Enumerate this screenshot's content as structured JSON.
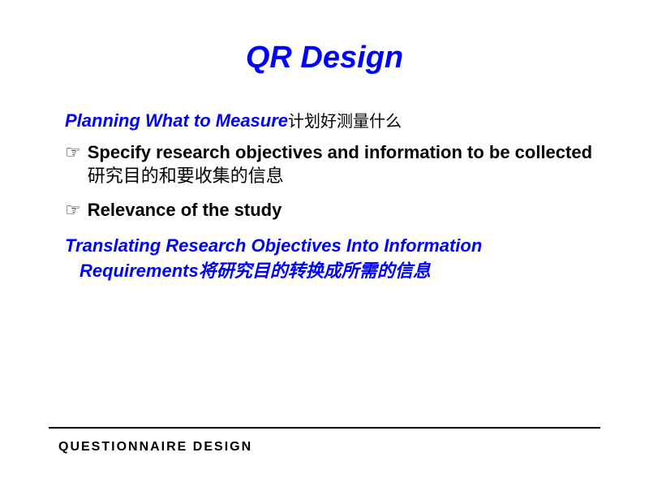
{
  "slide": {
    "title": "QR Design",
    "heading1_en": "Planning What to Measure",
    "heading1_zh": "计划好测量什么",
    "bullet1_en": "Specify research objectives and information to be collected",
    "bullet1_zh": " 研究目的和要收集的信息",
    "bullet2": "Relevance of the study",
    "heading2_line1": "Translating Research Objectives Into Information",
    "heading2_line2_en": "Requirements",
    "heading2_line2_zh": "将研究目的转换成所需的信息",
    "footer": "QUESTIONNAIRE  DESIGN"
  },
  "style": {
    "title_color": "#0000ff",
    "heading_color": "#0000ff",
    "text_color": "#000000",
    "background_color": "#ffffff",
    "bullet_glyph": "☞"
  }
}
